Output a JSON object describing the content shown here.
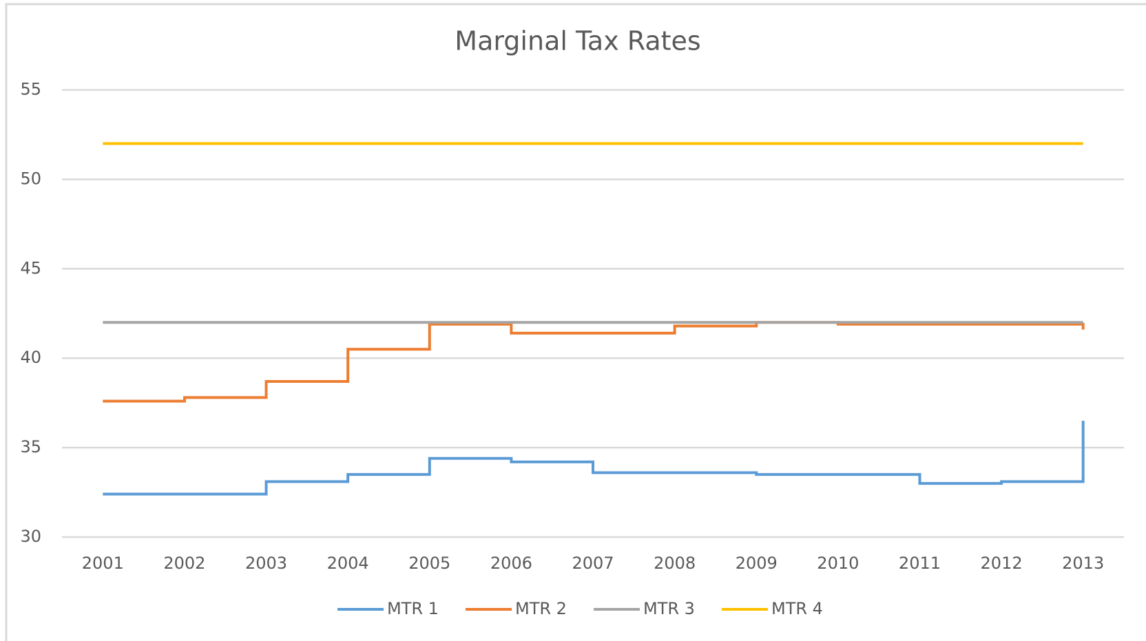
{
  "chart_data": {
    "type": "line",
    "step": true,
    "title": "Marginal Tax Rates",
    "categories": [
      "2001",
      "2002",
      "2003",
      "2004",
      "2005",
      "2006",
      "2007",
      "2008",
      "2009",
      "2010",
      "2011",
      "2012",
      "2013"
    ],
    "series": [
      {
        "name": "MTR 1",
        "color": "#5b9bd5",
        "values": [
          32.4,
          32.4,
          33.1,
          33.5,
          34.4,
          34.2,
          33.6,
          33.6,
          33.5,
          33.5,
          33.0,
          33.1,
          36.5
        ]
      },
      {
        "name": "MTR 2",
        "color": "#ed7d31",
        "values": [
          37.6,
          37.8,
          38.7,
          40.5,
          41.9,
          41.4,
          41.4,
          41.8,
          42.0,
          41.9,
          41.9,
          41.9,
          41.6
        ]
      },
      {
        "name": "MTR 3",
        "color": "#a5a5a5",
        "values": [
          42,
          42,
          42,
          42,
          42,
          42,
          42,
          42,
          42,
          42,
          42,
          42,
          42
        ]
      },
      {
        "name": "MTR 4",
        "color": "#ffc000",
        "values": [
          52,
          52,
          52,
          52,
          52,
          52,
          52,
          52,
          52,
          52,
          52,
          52,
          52
        ]
      }
    ],
    "ylim": [
      30,
      55
    ],
    "yticks": [
      30,
      35,
      40,
      45,
      50,
      55
    ],
    "grid": true,
    "legend": "bottom"
  }
}
